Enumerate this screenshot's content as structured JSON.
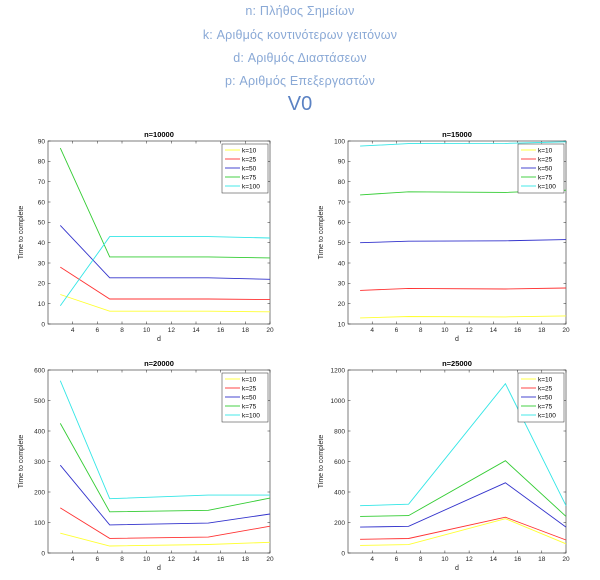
{
  "header": {
    "lines": [
      "n: Πλήθος Σημείων",
      "k: Αριθμός κοντινότερων γειτόνων",
      "d: Αριθμός Διαστάσεων",
      "p: Αριθμός Επεξεργαστών"
    ],
    "version": "V0"
  },
  "colors": {
    "k10": "#ffff33",
    "k25": "#ff3333",
    "k50": "#3333cc",
    "k75": "#33cc33",
    "k100": "#33e6e6",
    "text_header": "#8aa9d6",
    "text_version": "#5b82c3"
  },
  "chart_data": [
    {
      "type": "line",
      "title": "n=10000",
      "xlabel": "d",
      "ylabel": "Time to complete",
      "xlim": [
        2,
        20
      ],
      "ylim": [
        0,
        90
      ],
      "xticks": [
        4,
        6,
        8,
        10,
        12,
        14,
        16,
        18,
        20
      ],
      "yticks": [
        0,
        10,
        20,
        30,
        40,
        50,
        60,
        70,
        80,
        90
      ],
      "legend_position": "top-right",
      "grid": false,
      "x": [
        3,
        7,
        15,
        20
      ],
      "series": [
        {
          "name": "k=10",
          "color_key": "k10",
          "values": [
            14.5,
            6.3,
            6.3,
            6.0
          ]
        },
        {
          "name": "k=25",
          "color_key": "k25",
          "values": [
            28.0,
            12.3,
            12.3,
            12.0
          ]
        },
        {
          "name": "k=50",
          "color_key": "k50",
          "values": [
            48.5,
            22.7,
            22.7,
            22.0
          ]
        },
        {
          "name": "k=75",
          "color_key": "k75",
          "values": [
            86.5,
            33.0,
            33.0,
            32.5
          ]
        },
        {
          "name": "k=100",
          "color_key": "k100",
          "values": [
            9.0,
            43.0,
            43.0,
            42.3
          ]
        }
      ]
    },
    {
      "type": "line",
      "title": "n=15000",
      "xlabel": "d",
      "ylabel": "Time to complete",
      "xlim": [
        2,
        20
      ],
      "ylim": [
        10,
        100
      ],
      "xticks": [
        4,
        6,
        8,
        10,
        12,
        14,
        16,
        18,
        20
      ],
      "yticks": [
        10,
        20,
        30,
        40,
        50,
        60,
        70,
        80,
        90,
        100
      ],
      "legend_position": "top-right",
      "grid": false,
      "x": [
        3,
        7,
        15,
        20
      ],
      "series": [
        {
          "name": "k=10",
          "color_key": "k10",
          "values": [
            13.0,
            13.7,
            13.5,
            14.0
          ]
        },
        {
          "name": "k=25",
          "color_key": "k25",
          "values": [
            26.5,
            27.5,
            27.2,
            27.7
          ]
        },
        {
          "name": "k=50",
          "color_key": "k50",
          "values": [
            50.0,
            50.7,
            50.9,
            51.5
          ]
        },
        {
          "name": "k=75",
          "color_key": "k75",
          "values": [
            73.5,
            75.0,
            74.7,
            75.8
          ]
        },
        {
          "name": "k=100",
          "color_key": "k100",
          "values": [
            97.5,
            98.7,
            98.8,
            99.6
          ]
        }
      ]
    },
    {
      "type": "line",
      "title": "n=20000",
      "xlabel": "d",
      "ylabel": "Time to complete",
      "xlim": [
        2,
        20
      ],
      "ylim": [
        0,
        600
      ],
      "xticks": [
        4,
        6,
        8,
        10,
        12,
        14,
        16,
        18,
        20
      ],
      "yticks": [
        0,
        100,
        200,
        300,
        400,
        500,
        600
      ],
      "legend_position": "top-right",
      "grid": false,
      "x": [
        3,
        7,
        15,
        20
      ],
      "series": [
        {
          "name": "k=10",
          "color_key": "k10",
          "values": [
            65,
            23,
            28,
            35
          ]
        },
        {
          "name": "k=25",
          "color_key": "k25",
          "values": [
            148,
            48,
            52,
            88
          ]
        },
        {
          "name": "k=50",
          "color_key": "k50",
          "values": [
            288,
            92,
            98,
            128
          ]
        },
        {
          "name": "k=75",
          "color_key": "k75",
          "values": [
            425,
            135,
            140,
            180
          ]
        },
        {
          "name": "k=100",
          "color_key": "k100",
          "values": [
            565,
            178,
            190,
            190
          ]
        }
      ]
    },
    {
      "type": "line",
      "title": "n=25000",
      "xlabel": "d",
      "ylabel": "Time to complete",
      "xlim": [
        2,
        20
      ],
      "ylim": [
        0,
        1200
      ],
      "xticks": [
        4,
        6,
        8,
        10,
        12,
        14,
        16,
        18,
        20
      ],
      "yticks": [
        0,
        200,
        400,
        600,
        800,
        1000,
        1200
      ],
      "legend_position": "top-right",
      "grid": false,
      "x": [
        3,
        7,
        15,
        20
      ],
      "series": [
        {
          "name": "k=10",
          "color_key": "k10",
          "values": [
            50,
            55,
            225,
            60
          ]
        },
        {
          "name": "k=25",
          "color_key": "k25",
          "values": [
            90,
            95,
            235,
            85
          ]
        },
        {
          "name": "k=50",
          "color_key": "k50",
          "values": [
            170,
            175,
            460,
            170
          ]
        },
        {
          "name": "k=75",
          "color_key": "k75",
          "values": [
            240,
            245,
            605,
            240
          ]
        },
        {
          "name": "k=100",
          "color_key": "k100",
          "values": [
            310,
            320,
            1110,
            310
          ]
        }
      ]
    }
  ]
}
